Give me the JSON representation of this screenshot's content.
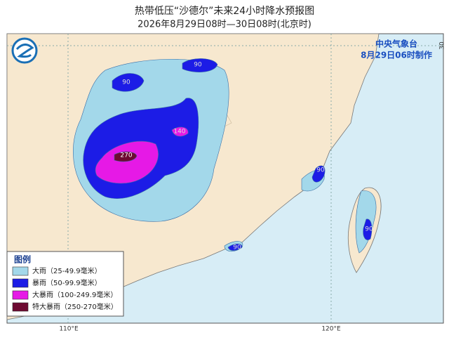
{
  "header": {
    "title": "热带低压“沙德尔”未来24小时降水预报图",
    "subtitle": "2026年8月29日08时—30日08时(北京时)"
  },
  "issuer": {
    "name": "中央气象台",
    "time": "8月29日06时制作"
  },
  "legend": {
    "title": "图例",
    "items": [
      {
        "label": "大雨（25-49.9毫米）",
        "color": "#a3d8ea"
      },
      {
        "label": "暴雨（50-99.9毫米）",
        "color": "#1c1ce6"
      },
      {
        "label": "大暴雨（100-249.9毫米）",
        "color": "#e619e6"
      },
      {
        "label": "特大暴雨（250-270毫米）",
        "color": "#6e0a32"
      }
    ]
  },
  "contour_labels": [
    90,
    90,
    140,
    270,
    90,
    90,
    90
  ],
  "grid_labels": {
    "lon": [
      "110°E",
      "120°E"
    ],
    "lat": [
      "30"
    ]
  }
}
